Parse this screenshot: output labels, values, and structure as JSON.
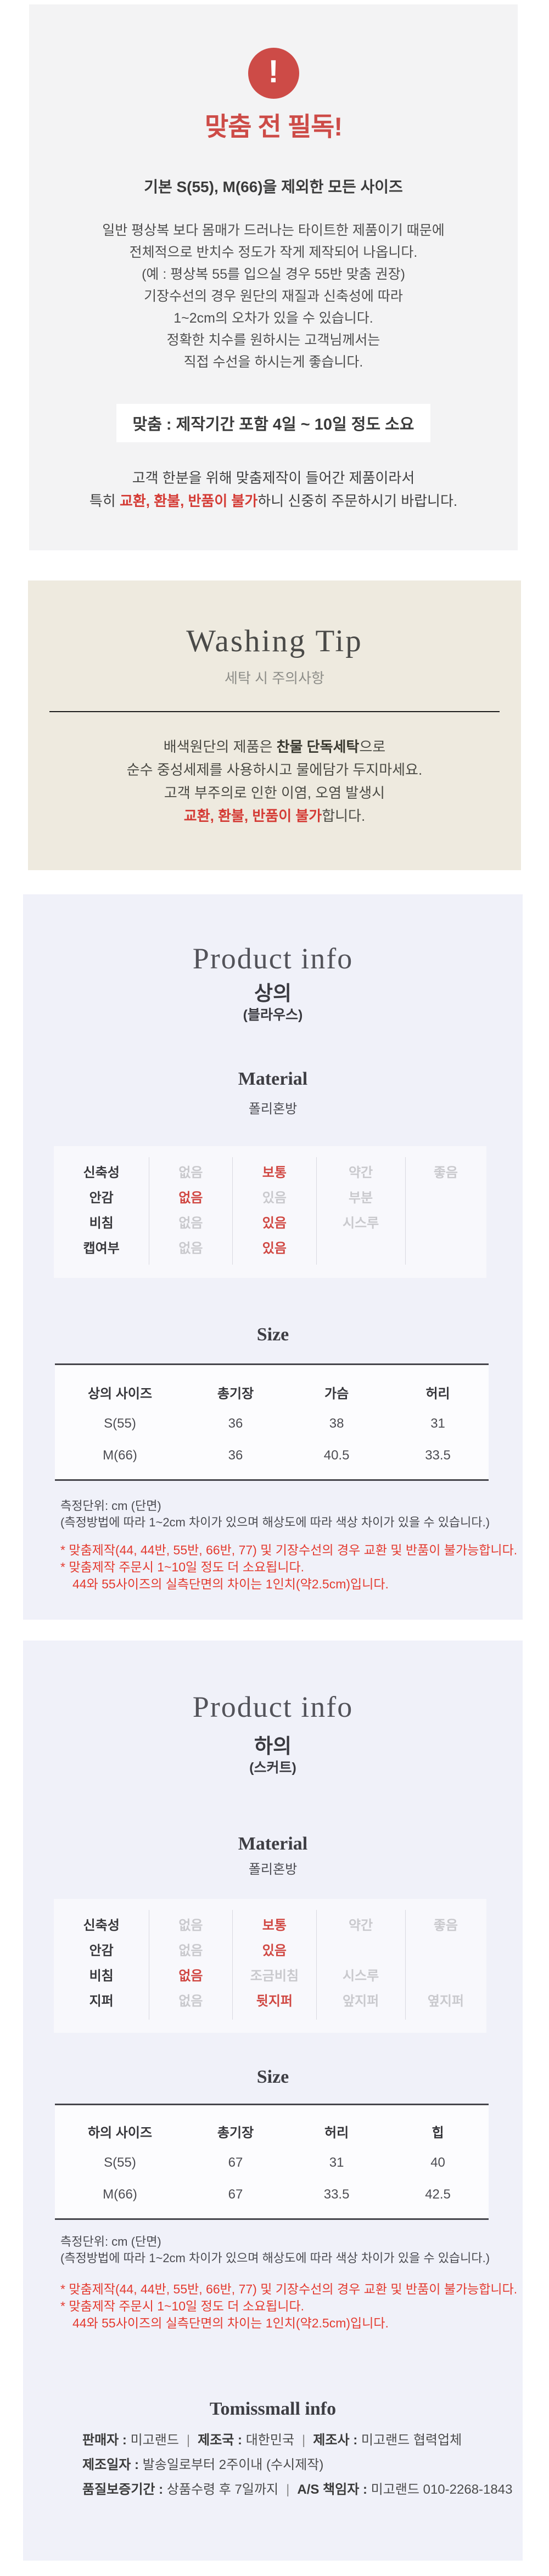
{
  "colors": {
    "warning_red": "#cd4b47",
    "highlight_red": "#d43b35",
    "note_red": "#e43a2f",
    "table_red": "#d04742",
    "notice_bg": "#f3f3f4",
    "washing_bg": "#eeeadf",
    "product_bg": "#f0f1f9"
  },
  "notice": {
    "icon": "exclamation",
    "icon_glyph": "!",
    "title": "맞춤 전 필독!",
    "subtitle": "기본 S(55), M(66)을 제외한 모든 사이즈",
    "body_lines": [
      "일반 평상복 보다 몸매가 드러나는 타이트한 제품이기 때문에",
      "전체적으로 반치수 정도가 작게 제작되어 나옵니다.",
      "(예 : 평상복 55를 입으실 경우 55반 맞춤 권장)",
      "기장수선의 경우 원단의 재질과 신축성에 따라",
      "1~2cm의 오차가 있을 수 있습니다.",
      "정확한 치수를 원하시는 고객님께서는",
      "직접 수선을 하시는게 좋습니다."
    ],
    "badge": "맞춤 : 제작기간 포함 4일 ~ 10일 정도 소요",
    "closing_line1": "고객 한분을 위해 맞춤제작이 들어간 제품이라서",
    "closing_line2": {
      "prefix": "특히 ",
      "red": "교환, 환불, 반품이 불가",
      "suffix": "하니 신중히 주문하시기 바랍니다."
    }
  },
  "washing": {
    "title": "Washing Tip",
    "subtitle": "세탁 시 주의사항",
    "line1_prefix": "배색원단의 제품은 ",
    "line1_bold": "찬물 단독세탁",
    "line1_suffix": "으로",
    "line2": "순수 중성세제를 사용하시고 물에담가 두지마세요.",
    "line3": "고객 부주의로 인한 이염, 오염 발생시",
    "line4_red": "교환, 환불, 반품이 불가",
    "line4_suffix": "합니다."
  },
  "product_top": {
    "heading": "Product info",
    "category": "상의",
    "category_note": "(블라우스)",
    "material_heading": "Material",
    "fabric": "폴리혼방",
    "material_table": [
      {
        "label": "신축성",
        "cells": [
          {
            "t": "없음",
            "s": "off"
          },
          {
            "t": "보통",
            "s": "on"
          },
          {
            "t": "약간",
            "s": "off"
          },
          {
            "t": "좋음",
            "s": "off"
          }
        ]
      },
      {
        "label": "안감",
        "cells": [
          {
            "t": "없음",
            "s": "on"
          },
          {
            "t": "있음",
            "s": "off"
          },
          {
            "t": "부분",
            "s": "off"
          },
          {
            "t": "",
            "s": "off"
          }
        ]
      },
      {
        "label": "비침",
        "cells": [
          {
            "t": "없음",
            "s": "off"
          },
          {
            "t": "있음",
            "s": "on"
          },
          {
            "t": "시스루",
            "s": "off"
          },
          {
            "t": "",
            "s": "off"
          }
        ]
      },
      {
        "label": "캡여부",
        "cells": [
          {
            "t": "없음",
            "s": "off"
          },
          {
            "t": "있음",
            "s": "on"
          },
          {
            "t": "",
            "s": "off"
          },
          {
            "t": "",
            "s": "off"
          }
        ]
      }
    ],
    "size_heading": "Size",
    "size_table": {
      "headers": [
        "상의 사이즈",
        "총기장",
        "가슴",
        "허리"
      ],
      "rows": [
        [
          "S(55)",
          "36",
          "38",
          "31"
        ],
        [
          "M(66)",
          "36",
          "40.5",
          "33.5"
        ]
      ]
    },
    "measure_notes": [
      "측정단위: cm (단면)",
      "(측정방법에 따라 1~2cm 차이가 있으며 해상도에 따라 색상 차이가 있을 수 있습니다.)"
    ],
    "red_notes": [
      "* 맞춤제작(44, 44반, 55반, 66반, 77) 및 기장수선의 경우 교환 및 반품이 불가능합니다.",
      "* 맞춤제작 주문시 1~10일 정도 더 소요됩니다.",
      "44와 55사이즈의 실측단면의 차이는 1인치(약2.5cm)입니다."
    ]
  },
  "product_bottom": {
    "heading": "Product info",
    "category": "하의",
    "category_note": "(스커트)",
    "material_heading": "Material",
    "fabric": "폴리혼방",
    "material_table": [
      {
        "label": "신축성",
        "cells": [
          {
            "t": "없음",
            "s": "off"
          },
          {
            "t": "보통",
            "s": "on"
          },
          {
            "t": "약간",
            "s": "off"
          },
          {
            "t": "좋음",
            "s": "off"
          }
        ]
      },
      {
        "label": "안감",
        "cells": [
          {
            "t": "없음",
            "s": "off"
          },
          {
            "t": "있음",
            "s": "on"
          },
          {
            "t": "",
            "s": "off"
          },
          {
            "t": "",
            "s": "off"
          }
        ]
      },
      {
        "label": "비침",
        "cells": [
          {
            "t": "없음",
            "s": "on"
          },
          {
            "t": "조금비침",
            "s": "off"
          },
          {
            "t": "시스루",
            "s": "off"
          },
          {
            "t": "",
            "s": "off"
          }
        ]
      },
      {
        "label": "지퍼",
        "cells": [
          {
            "t": "없음",
            "s": "off"
          },
          {
            "t": "뒷지퍼",
            "s": "on"
          },
          {
            "t": "앞지퍼",
            "s": "off"
          },
          {
            "t": "옆지퍼",
            "s": "off"
          }
        ]
      }
    ],
    "size_heading": "Size",
    "size_table": {
      "headers": [
        "하의 사이즈",
        "총기장",
        "허리",
        "힙"
      ],
      "rows": [
        [
          "S(55)",
          "67",
          "31",
          "40"
        ],
        [
          "M(66)",
          "67",
          "33.5",
          "42.5"
        ]
      ]
    },
    "measure_notes": [
      "측정단위: cm (단면)",
      "(측정방법에 따라 1~2cm 차이가 있으며 해상도에 따라 색상 차이가 있을 수 있습니다.)"
    ],
    "red_notes": [
      "* 맞춤제작(44, 44반, 55반, 66반, 77) 및 기장수선의 경우 교환 및 반품이 불가능합니다.",
      "* 맞춤제작 주문시 1~10일 정도 더 소요됩니다.",
      "44와 55사이즈의 실측단면의 차이는 1인치(약2.5cm)입니다."
    ]
  },
  "seller": {
    "heading": "Tomissmall info",
    "rows": [
      [
        {
          "label": "판매자",
          "value": "미고랜드"
        },
        {
          "label": "제조국",
          "value": "대한민국"
        },
        {
          "label": "제조사",
          "value": "미고랜드 협력업체"
        }
      ],
      [
        {
          "label": "제조일자",
          "value": "발송일로부터 2주이내 (수시제작)"
        }
      ],
      [
        {
          "label": "품질보증기간",
          "value": "상품수령 후 7일까지"
        },
        {
          "label": "A/S 책임자",
          "value": "미고랜드 010-2268-1843"
        }
      ]
    ]
  }
}
